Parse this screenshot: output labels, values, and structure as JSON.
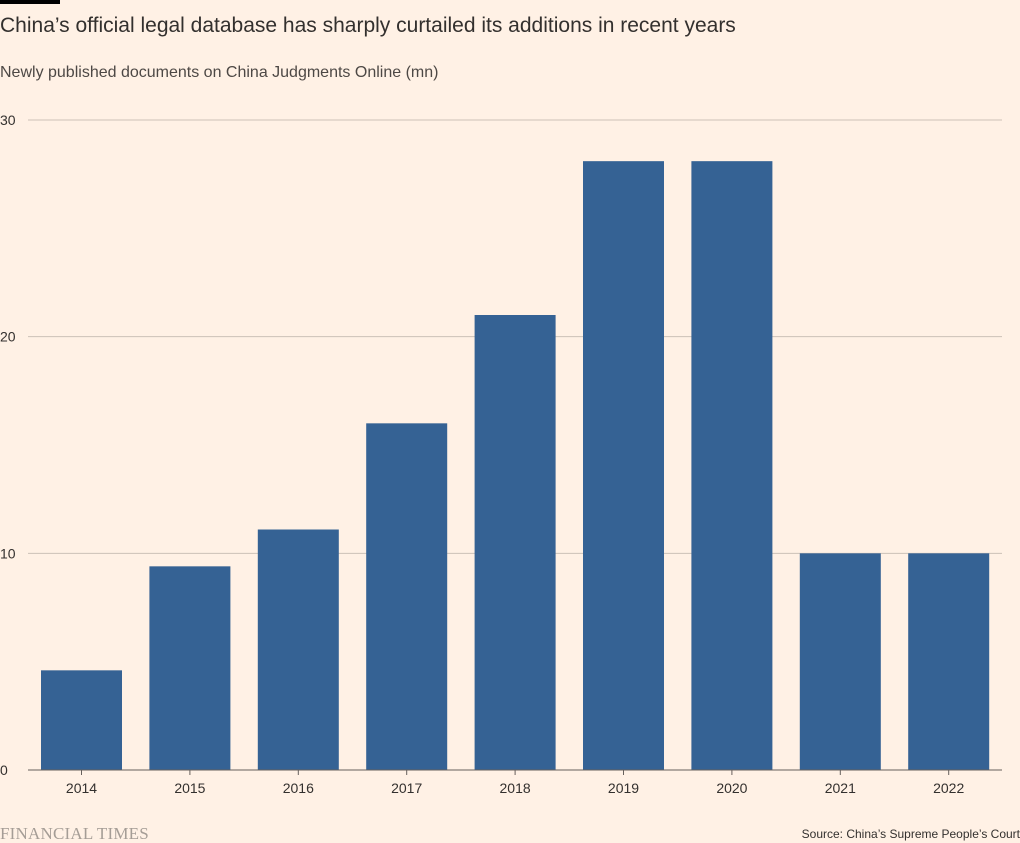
{
  "title": "China’s official legal database has sharply curtailed its additions in recent years",
  "subtitle": "Newly published documents on China Judgments Online (mn)",
  "footer": {
    "logo": "FINANCIAL TIMES",
    "source": "Source: China’s Supreme People’s Court"
  },
  "colors": {
    "background": "#fff1e5",
    "bar": "#356294",
    "gridline": "#ccc1b7",
    "axis": "#66605c",
    "text": "#33302e"
  },
  "chart_data": {
    "type": "bar",
    "title": "China’s official legal database has sharply curtailed its additions in recent years",
    "subtitle": "Newly published documents on China Judgments Online (mn)",
    "categories": [
      "2014",
      "2015",
      "2016",
      "2017",
      "2018",
      "2019",
      "2020",
      "2021",
      "2022"
    ],
    "values": [
      4.6,
      9.4,
      11.1,
      16.0,
      21.0,
      28.1,
      28.1,
      10.0,
      10.0
    ],
    "ylim": [
      0,
      30
    ],
    "yticks": [
      0,
      10,
      20,
      30
    ],
    "xlabel": "",
    "ylabel": "",
    "grid": true,
    "legend": "none"
  }
}
